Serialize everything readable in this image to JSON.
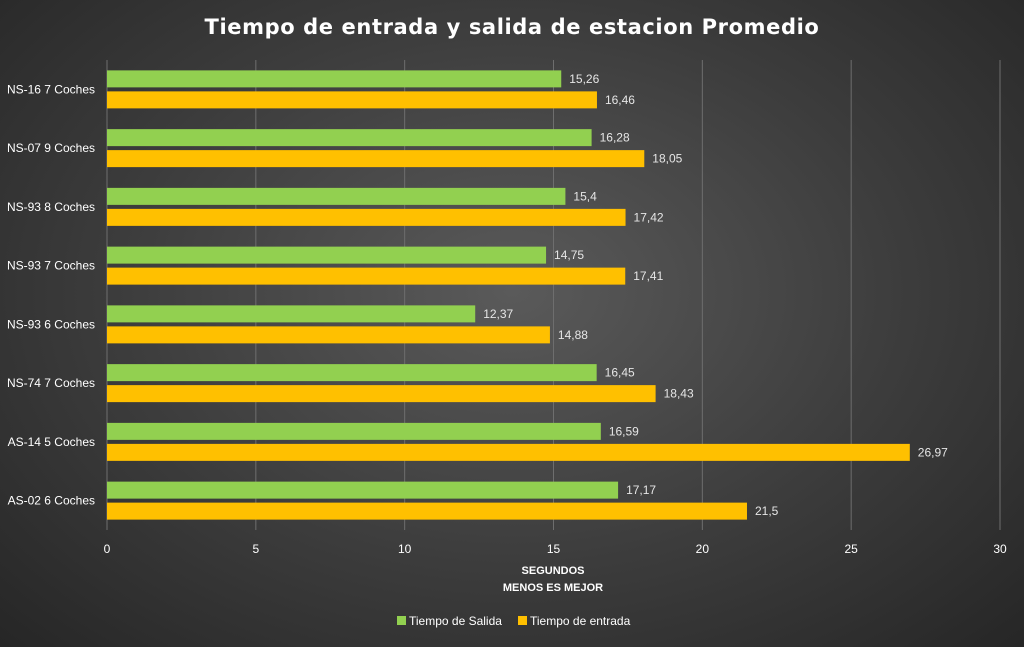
{
  "chart_data": {
    "type": "bar",
    "orientation": "horizontal",
    "title": "Tiempo de entrada y salida de estacion Promedio",
    "xlabel": "SEGUNDOS",
    "xlabel_sub": "MENOS ES MEJOR",
    "ylabel": "",
    "xlim": [
      0,
      30
    ],
    "xticks": [
      "0",
      "5",
      "10",
      "15",
      "20",
      "25",
      "30"
    ],
    "grid": true,
    "legend_position": "bottom",
    "categories": [
      "NS-16 7 Coches",
      "NS-07 9 Coches",
      "NS-93 8 Coches",
      "NS-93 7 Coches",
      "NS-93 6 Coches",
      "NS-74 7 Coches",
      "AS-14 5 Coches",
      "AS-02 6 Coches"
    ],
    "series": [
      {
        "name": "Tiempo de Salida",
        "color": "#92d050",
        "values": [
          15.26,
          16.28,
          15.4,
          14.75,
          12.37,
          16.45,
          16.59,
          17.17
        ],
        "labels": [
          "15,26",
          "16,28",
          "15,4",
          "14,75",
          "12,37",
          "16,45",
          "16,59",
          "17,17"
        ]
      },
      {
        "name": "Tiempo de entrada",
        "color": "#ffc000",
        "values": [
          16.46,
          18.05,
          17.42,
          17.41,
          14.88,
          18.43,
          26.97,
          21.5
        ],
        "labels": [
          "16,46",
          "18,05",
          "17,42",
          "17,41",
          "14,88",
          "18,43",
          "26,97",
          "21,5"
        ]
      }
    ]
  }
}
